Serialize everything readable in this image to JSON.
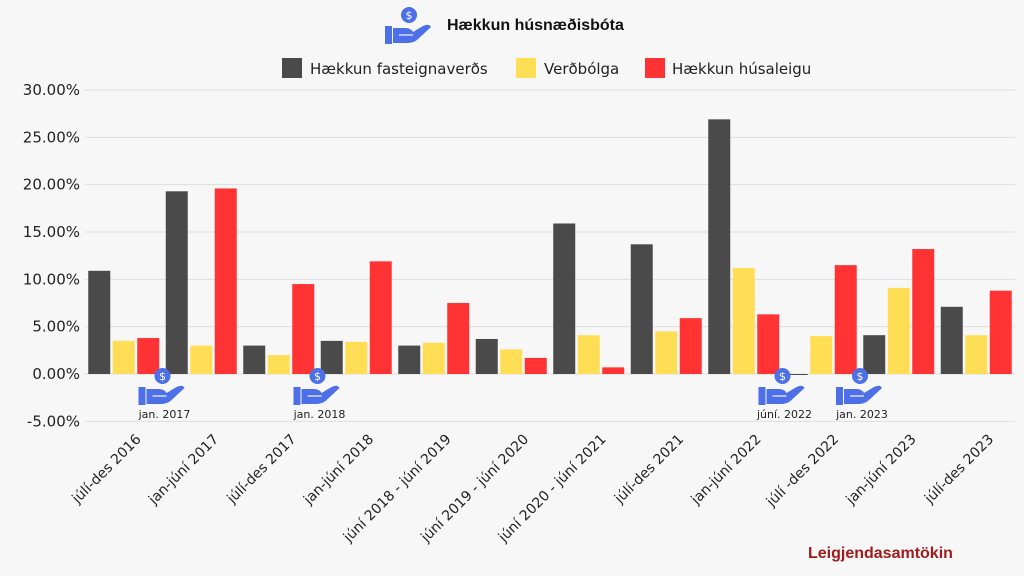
{
  "chart_data": {
    "type": "bar",
    "title": "Hækkun húsnæðisbóta",
    "title_icon": "hand-dollar-icon",
    "xlabel": "",
    "ylabel": "",
    "ylim": [
      -5,
      30
    ],
    "yticks": [
      -5,
      0,
      5,
      10,
      15,
      20,
      25,
      30
    ],
    "ytick_labels": [
      "-5.00%",
      "0.00%",
      "5.00%",
      "10.00%",
      "15.00%",
      "20.00%",
      "25.00%",
      "30.00%"
    ],
    "grid": true,
    "legend_position": "top-center",
    "categories": [
      "júlí-des 2016",
      "jan-júní 2017",
      "júlí-des 2017",
      "jan-júní 2018",
      "júní 2018 - júní 2019",
      "júní 2019 - júní 2020",
      "júní 2020 - júní 2021",
      "júlí-des 2021",
      "jan-júní 2022",
      "júlí -des 2022",
      "jan-júní 2023",
      "júlí-des 2023"
    ],
    "series": [
      {
        "name": "Hækkun fasteignaverðs",
        "color": "#4a4a4a",
        "values": [
          10.9,
          19.3,
          3.0,
          3.5,
          3.0,
          3.7,
          15.9,
          13.7,
          26.9,
          -0.1,
          4.1,
          7.1
        ]
      },
      {
        "name": "Verðbólga",
        "color": "#ffdd55",
        "values": [
          3.5,
          3.0,
          2.0,
          3.4,
          3.3,
          2.6,
          4.1,
          4.5,
          11.2,
          4.0,
          9.1,
          4.1
        ]
      },
      {
        "name": "Hækkun húsaleigu",
        "color": "#ff3333",
        "values": [
          3.8,
          19.6,
          9.5,
          11.9,
          7.5,
          1.7,
          0.7,
          5.9,
          6.3,
          11.5,
          13.2,
          8.8
        ]
      }
    ],
    "annotations": [
      {
        "label": "jan. 2017",
        "boundary_after_category": 1,
        "icon": "hand-dollar-icon"
      },
      {
        "label": "jan. 2018",
        "boundary_after_category": 3,
        "icon": "hand-dollar-icon"
      },
      {
        "label": "júní. 2022",
        "boundary_after_category": 9,
        "icon": "hand-dollar-icon"
      },
      {
        "label": "jan. 2023",
        "boundary_after_category": 10,
        "icon": "hand-dollar-icon"
      }
    ]
  },
  "footer": {
    "brand": "Leigjendasamtökin"
  }
}
